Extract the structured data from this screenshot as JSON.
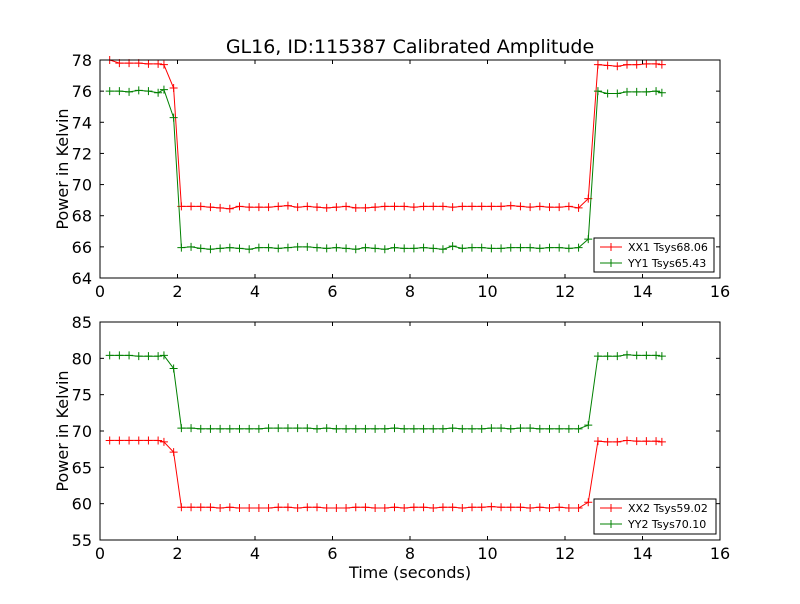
{
  "figure": {
    "title": "GL16, ID:115387 Calibrated Amplitude"
  },
  "chart_data": [
    {
      "type": "line",
      "title": "GL16, ID:115387 Calibrated Amplitude",
      "xlabel": "",
      "ylabel": "Power in Kelvin",
      "xlim": [
        0,
        16
      ],
      "ylim": [
        64,
        78
      ],
      "xticks": [
        0,
        2,
        4,
        6,
        8,
        10,
        12,
        14,
        16
      ],
      "yticks": [
        64,
        66,
        68,
        70,
        72,
        74,
        76,
        78
      ],
      "grid": false,
      "legend_position": "lower-right",
      "x": [
        0.25,
        0.5,
        0.75,
        1.0,
        1.25,
        1.5,
        1.65,
        1.9,
        2.1,
        2.35,
        2.6,
        2.85,
        3.1,
        3.35,
        3.6,
        3.85,
        4.1,
        4.35,
        4.6,
        4.85,
        5.1,
        5.35,
        5.6,
        5.85,
        6.1,
        6.35,
        6.6,
        6.85,
        7.1,
        7.35,
        7.6,
        7.85,
        8.1,
        8.35,
        8.6,
        8.85,
        9.1,
        9.35,
        9.6,
        9.85,
        10.1,
        10.35,
        10.6,
        10.85,
        11.1,
        11.35,
        11.6,
        11.85,
        12.1,
        12.35,
        12.6,
        12.85,
        13.1,
        13.35,
        13.6,
        13.85,
        14.1,
        14.35,
        14.5
      ],
      "series": [
        {
          "name": "XX1 Tsys68.06",
          "color": "#ff0000",
          "values": [
            78.0,
            77.8,
            77.8,
            77.8,
            77.75,
            77.75,
            77.7,
            76.2,
            68.6,
            68.6,
            68.6,
            68.55,
            68.5,
            68.45,
            68.6,
            68.55,
            68.55,
            68.55,
            68.6,
            68.65,
            68.55,
            68.6,
            68.55,
            68.5,
            68.55,
            68.6,
            68.5,
            68.5,
            68.55,
            68.6,
            68.6,
            68.6,
            68.55,
            68.6,
            68.6,
            68.6,
            68.55,
            68.6,
            68.6,
            68.6,
            68.6,
            68.6,
            68.65,
            68.6,
            68.55,
            68.6,
            68.55,
            68.55,
            68.6,
            68.5,
            69.1,
            77.7,
            77.65,
            77.6,
            77.7,
            77.7,
            77.75,
            77.75,
            77.7
          ]
        },
        {
          "name": "YY1 Tsys65.43",
          "color": "#008000",
          "values": [
            76.0,
            76.0,
            75.95,
            76.05,
            76.0,
            75.9,
            76.1,
            74.3,
            65.95,
            66.0,
            65.9,
            65.85,
            65.9,
            65.95,
            65.9,
            65.85,
            65.95,
            65.95,
            65.9,
            65.95,
            66.0,
            66.0,
            65.95,
            65.9,
            65.95,
            65.9,
            65.85,
            65.95,
            65.9,
            65.85,
            65.95,
            65.9,
            65.9,
            65.95,
            65.9,
            65.85,
            66.05,
            65.9,
            65.95,
            65.95,
            65.9,
            65.9,
            65.95,
            65.95,
            65.95,
            65.9,
            65.95,
            65.95,
            65.9,
            65.95,
            66.5,
            76.0,
            75.85,
            75.85,
            75.95,
            75.95,
            75.95,
            76.0,
            75.9
          ]
        }
      ]
    },
    {
      "type": "line",
      "title": "",
      "xlabel": "Time (seconds)",
      "ylabel": "Power in Kelvin",
      "xlim": [
        0,
        16
      ],
      "ylim": [
        55,
        85
      ],
      "xticks": [
        0,
        2,
        4,
        6,
        8,
        10,
        12,
        14,
        16
      ],
      "yticks": [
        55,
        60,
        65,
        70,
        75,
        80,
        85
      ],
      "grid": false,
      "legend_position": "lower-right",
      "x": [
        0.25,
        0.5,
        0.75,
        1.0,
        1.25,
        1.5,
        1.65,
        1.9,
        2.1,
        2.35,
        2.6,
        2.85,
        3.1,
        3.35,
        3.6,
        3.85,
        4.1,
        4.35,
        4.6,
        4.85,
        5.1,
        5.35,
        5.6,
        5.85,
        6.1,
        6.35,
        6.6,
        6.85,
        7.1,
        7.35,
        7.6,
        7.85,
        8.1,
        8.35,
        8.6,
        8.85,
        9.1,
        9.35,
        9.6,
        9.85,
        10.1,
        10.35,
        10.6,
        10.85,
        11.1,
        11.35,
        11.6,
        11.85,
        12.1,
        12.35,
        12.6,
        12.85,
        13.1,
        13.35,
        13.6,
        13.85,
        14.1,
        14.35,
        14.5
      ],
      "series": [
        {
          "name": "XX2 Tsys59.02",
          "color": "#ff0000",
          "values": [
            68.7,
            68.7,
            68.7,
            68.7,
            68.7,
            68.7,
            68.5,
            67.1,
            59.5,
            59.5,
            59.5,
            59.5,
            59.4,
            59.5,
            59.4,
            59.4,
            59.4,
            59.4,
            59.5,
            59.5,
            59.4,
            59.5,
            59.5,
            59.4,
            59.4,
            59.4,
            59.5,
            59.5,
            59.4,
            59.4,
            59.5,
            59.4,
            59.5,
            59.5,
            59.4,
            59.5,
            59.5,
            59.4,
            59.5,
            59.5,
            59.6,
            59.5,
            59.5,
            59.5,
            59.4,
            59.5,
            59.4,
            59.5,
            59.4,
            59.4,
            60.2,
            68.6,
            68.5,
            68.5,
            68.7,
            68.6,
            68.6,
            68.6,
            68.5
          ]
        },
        {
          "name": "YY2 Tsys70.10",
          "color": "#008000",
          "values": [
            80.4,
            80.4,
            80.4,
            80.3,
            80.3,
            80.3,
            80.4,
            78.6,
            70.4,
            70.4,
            70.3,
            70.3,
            70.3,
            70.3,
            70.3,
            70.3,
            70.3,
            70.4,
            70.4,
            70.4,
            70.4,
            70.4,
            70.3,
            70.4,
            70.3,
            70.3,
            70.3,
            70.3,
            70.3,
            70.3,
            70.4,
            70.3,
            70.3,
            70.3,
            70.3,
            70.3,
            70.4,
            70.3,
            70.3,
            70.3,
            70.4,
            70.4,
            70.3,
            70.4,
            70.4,
            70.3,
            70.3,
            70.3,
            70.3,
            70.3,
            70.8,
            80.3,
            80.3,
            80.3,
            80.5,
            80.4,
            80.4,
            80.4,
            80.3
          ]
        }
      ]
    }
  ]
}
